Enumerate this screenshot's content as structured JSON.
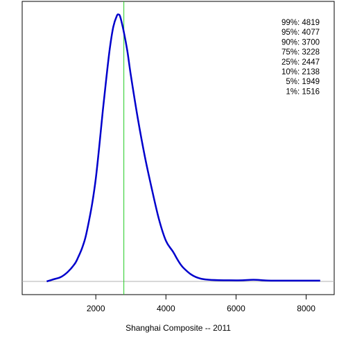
{
  "chart_data": {
    "type": "line",
    "xlabel": "Shanghai Composite -- 2011",
    "ylabel": "",
    "title": "",
    "xlim": [
      -100,
      8800
    ],
    "x_ticks": [
      2000,
      4000,
      6000,
      8000
    ],
    "x_tick_labels": [
      "2000",
      "4000",
      "6000",
      "8000"
    ],
    "y_ticks_shown": false,
    "baseline": 0,
    "density_peak_relative": 1.0,
    "series": [
      {
        "color": "#0000CC",
        "x": [
          600,
          800,
          1000,
          1200,
          1400,
          1500,
          1600,
          1700,
          1800,
          1900,
          2000,
          2100,
          2200,
          2300,
          2400,
          2500,
          2600,
          2650,
          2700,
          2800,
          2900,
          3000,
          3200,
          3400,
          3600,
          3800,
          4000,
          4200,
          4500,
          5000,
          6000,
          6500,
          7000,
          8000,
          8400
        ],
        "y": [
          0.0,
          0.008,
          0.016,
          0.035,
          0.065,
          0.09,
          0.12,
          0.16,
          0.22,
          0.29,
          0.38,
          0.5,
          0.63,
          0.75,
          0.86,
          0.94,
          0.98,
          0.985,
          0.975,
          0.92,
          0.85,
          0.76,
          0.6,
          0.46,
          0.34,
          0.23,
          0.15,
          0.11,
          0.05,
          0.01,
          0.004,
          0.006,
          0.003,
          0.003,
          0.003
        ]
      }
    ],
    "vertical_line": {
      "x": 2800,
      "color": "#22CC22"
    },
    "quantiles": [
      {
        "label": "99%: 4819"
      },
      {
        "label": "95%: 4077"
      },
      {
        "label": "90%: 3700"
      },
      {
        "label": "75%: 3228"
      },
      {
        "label": "25%: 2447"
      },
      {
        "label": "10%: 2138"
      },
      {
        "label": "5%: 1949"
      },
      {
        "label": "1%: 1516"
      }
    ]
  }
}
